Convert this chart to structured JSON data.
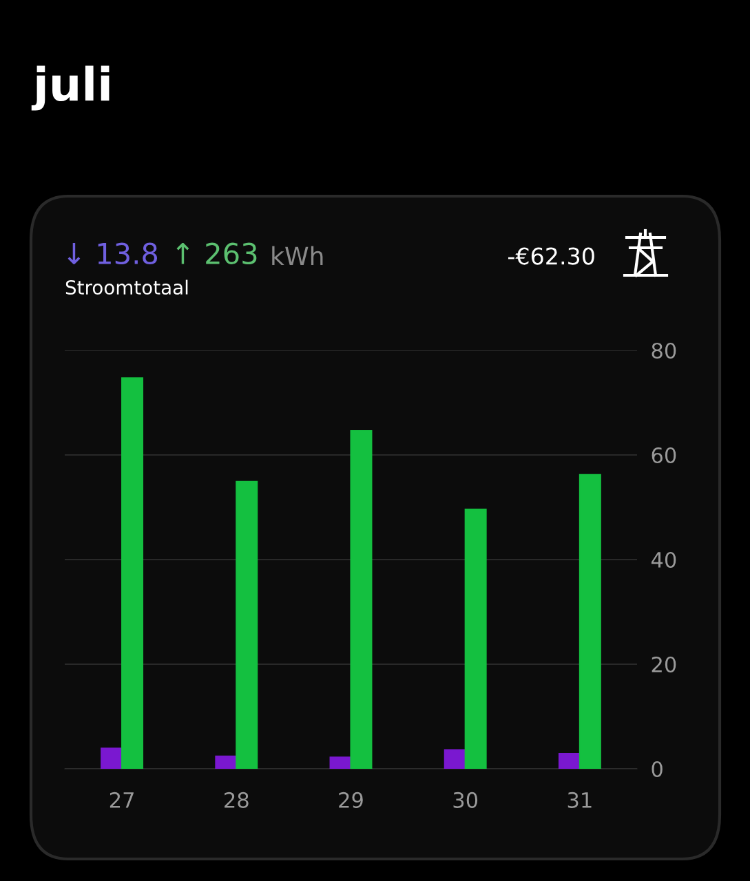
{
  "chart_data": {
    "type": "bar",
    "title": "juli",
    "annotations": [
      "↓ 13.8",
      "↑ 263",
      "kWh",
      "Stroomtotaal",
      "-€62.30"
    ],
    "categories": [
      "27",
      "28",
      "29",
      "30",
      "31"
    ],
    "series": [
      {
        "color": "#7a18d0",
        "values": [
          3.9,
          2.4,
          2.2,
          3.6,
          2.9
        ]
      },
      {
        "color": "#14c040",
        "values": [
          74.7,
          54.9,
          64.6,
          49.6,
          56.2
        ]
      }
    ],
    "ylim": [
      0,
      80
    ],
    "yticks": [
      0,
      20,
      40,
      60,
      80
    ],
    "grid": "y"
  }
}
